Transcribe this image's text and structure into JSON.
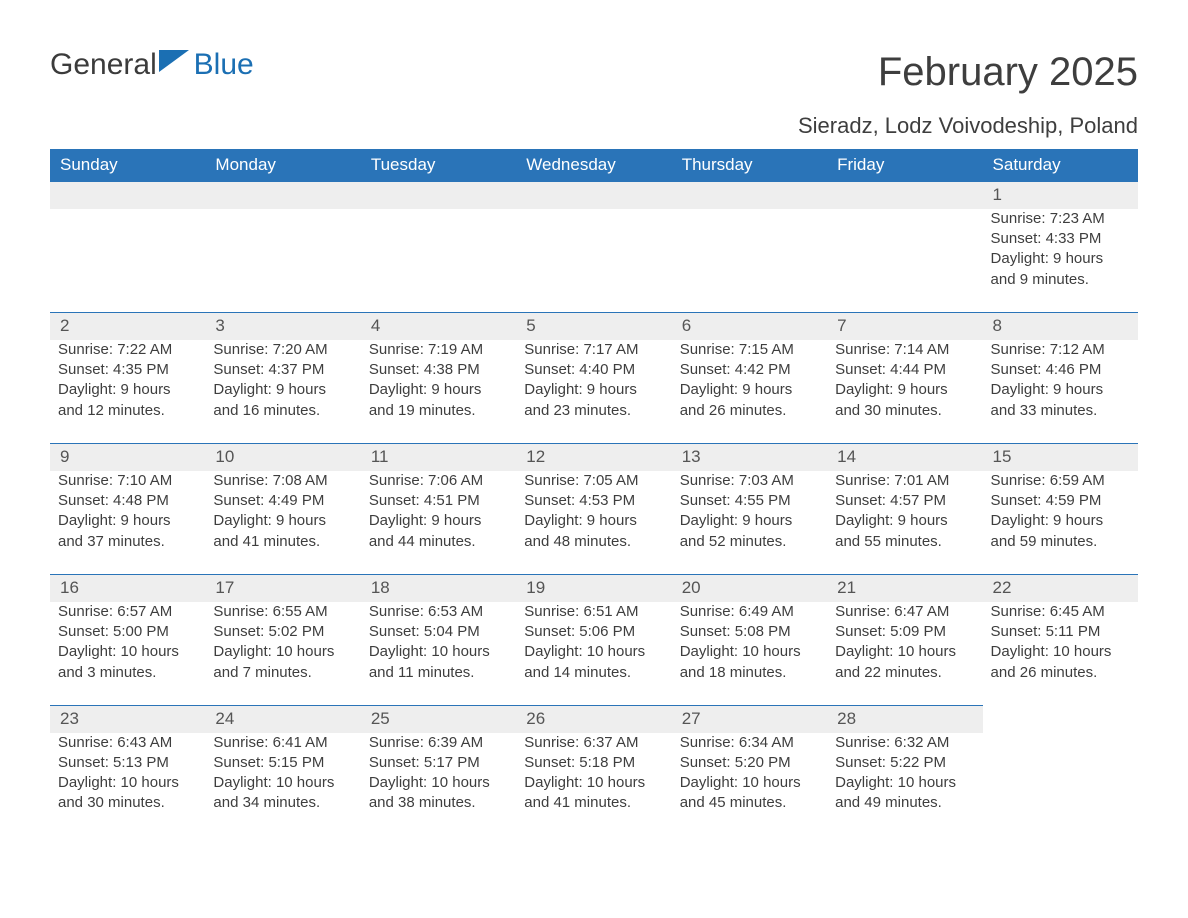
{
  "logo": {
    "general": "General",
    "blue": "Blue"
  },
  "title": "February 2025",
  "location": "Sieradz, Lodz Voivodeship, Poland",
  "colors": {
    "header_bg": "#2a74b8",
    "header_text": "#ffffff",
    "daynum_bg": "#eeeeee",
    "daynum_border": "#2a74b8",
    "body_text": "#3e3e3e",
    "logo_blue": "#1b6fb3",
    "page_bg": "#ffffff"
  },
  "fonts": {
    "family": "Arial",
    "title_size_pt": 30,
    "header_size_pt": 13,
    "cell_size_pt": 11
  },
  "daysOfWeek": [
    "Sunday",
    "Monday",
    "Tuesday",
    "Wednesday",
    "Thursday",
    "Friday",
    "Saturday"
  ],
  "weeks": [
    [
      null,
      null,
      null,
      null,
      null,
      null,
      {
        "n": "1",
        "sr": "Sunrise: 7:23 AM",
        "ss": "Sunset: 4:33 PM",
        "d1": "Daylight: 9 hours",
        "d2": "and 9 minutes."
      }
    ],
    [
      {
        "n": "2",
        "sr": "Sunrise: 7:22 AM",
        "ss": "Sunset: 4:35 PM",
        "d1": "Daylight: 9 hours",
        "d2": "and 12 minutes."
      },
      {
        "n": "3",
        "sr": "Sunrise: 7:20 AM",
        "ss": "Sunset: 4:37 PM",
        "d1": "Daylight: 9 hours",
        "d2": "and 16 minutes."
      },
      {
        "n": "4",
        "sr": "Sunrise: 7:19 AM",
        "ss": "Sunset: 4:38 PM",
        "d1": "Daylight: 9 hours",
        "d2": "and 19 minutes."
      },
      {
        "n": "5",
        "sr": "Sunrise: 7:17 AM",
        "ss": "Sunset: 4:40 PM",
        "d1": "Daylight: 9 hours",
        "d2": "and 23 minutes."
      },
      {
        "n": "6",
        "sr": "Sunrise: 7:15 AM",
        "ss": "Sunset: 4:42 PM",
        "d1": "Daylight: 9 hours",
        "d2": "and 26 minutes."
      },
      {
        "n": "7",
        "sr": "Sunrise: 7:14 AM",
        "ss": "Sunset: 4:44 PM",
        "d1": "Daylight: 9 hours",
        "d2": "and 30 minutes."
      },
      {
        "n": "8",
        "sr": "Sunrise: 7:12 AM",
        "ss": "Sunset: 4:46 PM",
        "d1": "Daylight: 9 hours",
        "d2": "and 33 minutes."
      }
    ],
    [
      {
        "n": "9",
        "sr": "Sunrise: 7:10 AM",
        "ss": "Sunset: 4:48 PM",
        "d1": "Daylight: 9 hours",
        "d2": "and 37 minutes."
      },
      {
        "n": "10",
        "sr": "Sunrise: 7:08 AM",
        "ss": "Sunset: 4:49 PM",
        "d1": "Daylight: 9 hours",
        "d2": "and 41 minutes."
      },
      {
        "n": "11",
        "sr": "Sunrise: 7:06 AM",
        "ss": "Sunset: 4:51 PM",
        "d1": "Daylight: 9 hours",
        "d2": "and 44 minutes."
      },
      {
        "n": "12",
        "sr": "Sunrise: 7:05 AM",
        "ss": "Sunset: 4:53 PM",
        "d1": "Daylight: 9 hours",
        "d2": "and 48 minutes."
      },
      {
        "n": "13",
        "sr": "Sunrise: 7:03 AM",
        "ss": "Sunset: 4:55 PM",
        "d1": "Daylight: 9 hours",
        "d2": "and 52 minutes."
      },
      {
        "n": "14",
        "sr": "Sunrise: 7:01 AM",
        "ss": "Sunset: 4:57 PM",
        "d1": "Daylight: 9 hours",
        "d2": "and 55 minutes."
      },
      {
        "n": "15",
        "sr": "Sunrise: 6:59 AM",
        "ss": "Sunset: 4:59 PM",
        "d1": "Daylight: 9 hours",
        "d2": "and 59 minutes."
      }
    ],
    [
      {
        "n": "16",
        "sr": "Sunrise: 6:57 AM",
        "ss": "Sunset: 5:00 PM",
        "d1": "Daylight: 10 hours",
        "d2": "and 3 minutes."
      },
      {
        "n": "17",
        "sr": "Sunrise: 6:55 AM",
        "ss": "Sunset: 5:02 PM",
        "d1": "Daylight: 10 hours",
        "d2": "and 7 minutes."
      },
      {
        "n": "18",
        "sr": "Sunrise: 6:53 AM",
        "ss": "Sunset: 5:04 PM",
        "d1": "Daylight: 10 hours",
        "d2": "and 11 minutes."
      },
      {
        "n": "19",
        "sr": "Sunrise: 6:51 AM",
        "ss": "Sunset: 5:06 PM",
        "d1": "Daylight: 10 hours",
        "d2": "and 14 minutes."
      },
      {
        "n": "20",
        "sr": "Sunrise: 6:49 AM",
        "ss": "Sunset: 5:08 PM",
        "d1": "Daylight: 10 hours",
        "d2": "and 18 minutes."
      },
      {
        "n": "21",
        "sr": "Sunrise: 6:47 AM",
        "ss": "Sunset: 5:09 PM",
        "d1": "Daylight: 10 hours",
        "d2": "and 22 minutes."
      },
      {
        "n": "22",
        "sr": "Sunrise: 6:45 AM",
        "ss": "Sunset: 5:11 PM",
        "d1": "Daylight: 10 hours",
        "d2": "and 26 minutes."
      }
    ],
    [
      {
        "n": "23",
        "sr": "Sunrise: 6:43 AM",
        "ss": "Sunset: 5:13 PM",
        "d1": "Daylight: 10 hours",
        "d2": "and 30 minutes."
      },
      {
        "n": "24",
        "sr": "Sunrise: 6:41 AM",
        "ss": "Sunset: 5:15 PM",
        "d1": "Daylight: 10 hours",
        "d2": "and 34 minutes."
      },
      {
        "n": "25",
        "sr": "Sunrise: 6:39 AM",
        "ss": "Sunset: 5:17 PM",
        "d1": "Daylight: 10 hours",
        "d2": "and 38 minutes."
      },
      {
        "n": "26",
        "sr": "Sunrise: 6:37 AM",
        "ss": "Sunset: 5:18 PM",
        "d1": "Daylight: 10 hours",
        "d2": "and 41 minutes."
      },
      {
        "n": "27",
        "sr": "Sunrise: 6:34 AM",
        "ss": "Sunset: 5:20 PM",
        "d1": "Daylight: 10 hours",
        "d2": "and 45 minutes."
      },
      {
        "n": "28",
        "sr": "Sunrise: 6:32 AM",
        "ss": "Sunset: 5:22 PM",
        "d1": "Daylight: 10 hours",
        "d2": "and 49 minutes."
      },
      null
    ]
  ]
}
